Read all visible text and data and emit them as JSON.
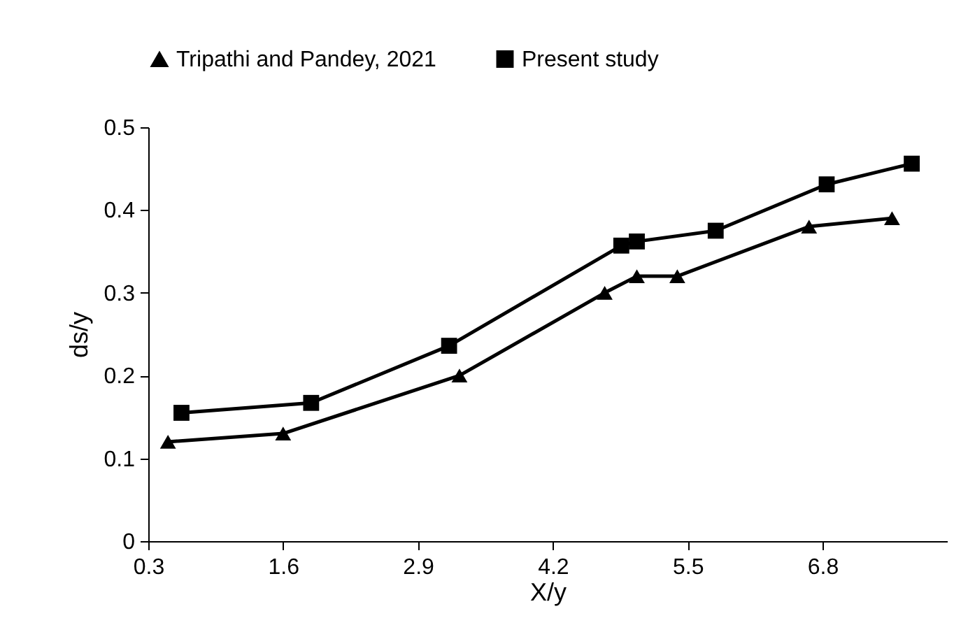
{
  "chart_data": {
    "type": "line",
    "xlabel": "X/y",
    "ylabel": "ds/y",
    "xlim": [
      0.3,
      8.0
    ],
    "xticks": [
      0.3,
      1.6,
      2.9,
      4.2,
      5.5,
      6.8
    ],
    "ylim": [
      0,
      0.5
    ],
    "yticks": [
      0,
      0.1,
      0.2,
      0.3,
      0.4,
      0.5
    ],
    "grid": false,
    "legend": "top",
    "line_style": "solid",
    "series": [
      {
        "name": "Tripathi and Pandey, 2021",
        "color": "#000000",
        "marker": "triangle",
        "x": [
          0.49,
          1.6,
          3.3,
          4.7,
          5.01,
          5.4,
          6.67,
          7.47
        ],
        "values": [
          0.12,
          0.13,
          0.2,
          0.3,
          0.32,
          0.32,
          0.38,
          0.39
        ]
      },
      {
        "name": "Present study",
        "color": "#000000",
        "marker": "square",
        "x": [
          0.62,
          1.87,
          3.2,
          4.86,
          5.01,
          5.77,
          6.84,
          7.66
        ],
        "values": [
          0.155,
          0.167,
          0.236,
          0.357,
          0.362,
          0.375,
          0.431,
          0.456
        ]
      }
    ]
  }
}
